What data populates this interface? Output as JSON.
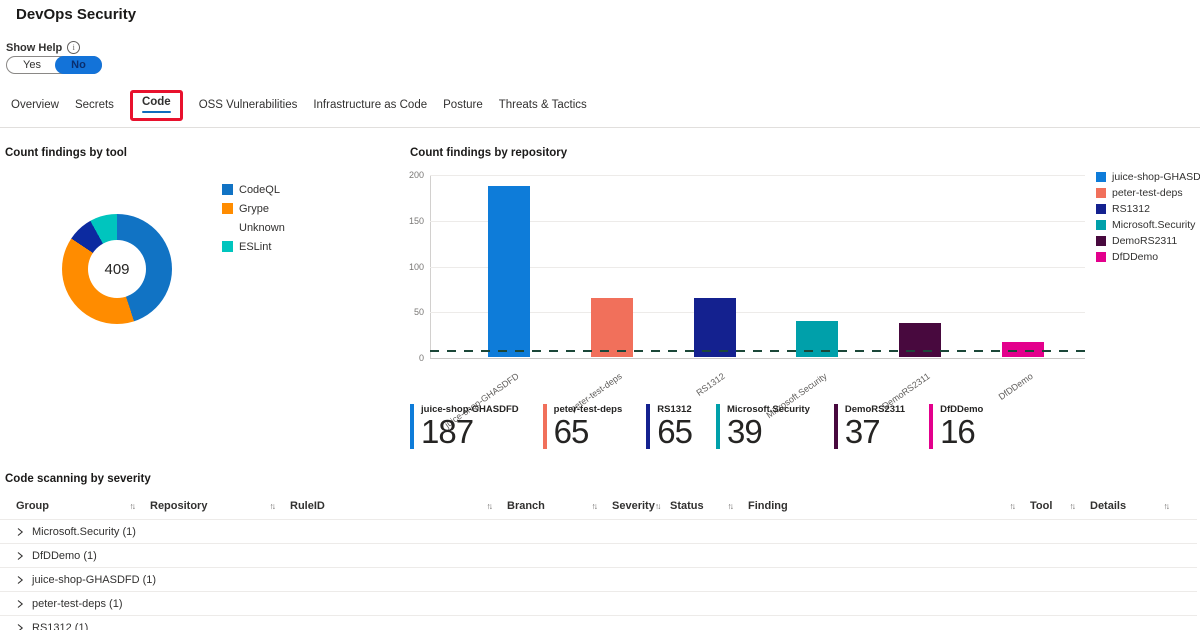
{
  "header": {
    "title": "DevOps Security"
  },
  "help": {
    "label": "Show Help",
    "yes_label": "Yes",
    "no_label": "No",
    "selected": "No"
  },
  "icons": {
    "info": "i",
    "sort": "↑↓"
  },
  "tabs": [
    {
      "label": "Overview",
      "active": false,
      "annotated": false
    },
    {
      "label": "Secrets",
      "active": false,
      "annotated": false
    },
    {
      "label": "Code",
      "active": true,
      "annotated": true
    },
    {
      "label": "OSS Vulnerabilities",
      "active": false,
      "annotated": false
    },
    {
      "label": "Infrastructure as Code",
      "active": false,
      "annotated": false
    },
    {
      "label": "Posture",
      "active": false,
      "annotated": false
    },
    {
      "label": "Threats & Tactics",
      "active": false,
      "annotated": false
    }
  ],
  "colors": {
    "accent_blue": "#0F6CBD",
    "annotation_red": "#E8112D",
    "toggle_blue": "#1373D9",
    "threshold_green": "#1B4738"
  },
  "chart_data": [
    {
      "type": "pie",
      "title": "Count findings by tool",
      "center_total": "409",
      "labels": [
        "CodeQL",
        "Grype",
        "Unknown",
        "ESLint"
      ],
      "values": [
        184,
        161,
        31,
        33
      ],
      "colors": [
        "#1173C4",
        "#FF8C00",
        "#0C2AA0",
        "#00C5BE"
      ],
      "legend_colors": [
        "#1173C4",
        "#FF8C00",
        "transparent",
        "#00C5BE"
      ],
      "legend_position": "right"
    },
    {
      "type": "bar",
      "title": "Count findings by repository",
      "categories": [
        "juice-shop-GHASDFD",
        "peter-test-deps",
        "RS1312",
        "Microsoft.Security",
        "DemoRS2311",
        "DfDDemo"
      ],
      "values": [
        187,
        65,
        65,
        39,
        37,
        16
      ],
      "colors": [
        "#0E7CD9",
        "#F1705B",
        "#14218F",
        "#00A0AA",
        "#48093E",
        "#E3008C"
      ],
      "ylim": [
        0,
        200
      ],
      "y_ticks": [
        200,
        150,
        100,
        50,
        0
      ],
      "threshold_line": {
        "value": 8,
        "style": "dashed",
        "color": "#1B4738"
      },
      "grid": true,
      "legend_position": "right"
    }
  ],
  "cards": [
    {
      "label": "juice-shop-GHASDFD",
      "value": "187",
      "color": "#0E7CD9"
    },
    {
      "label": "peter-test-deps",
      "value": "65",
      "color": "#F1705B"
    },
    {
      "label": "RS1312",
      "value": "65",
      "color": "#14218F"
    },
    {
      "label": "Microsoft.Security",
      "value": "39",
      "color": "#00A0AA"
    },
    {
      "label": "DemoRS2311",
      "value": "37",
      "color": "#48093E"
    },
    {
      "label": "DfDDemo",
      "value": "16",
      "color": "#E3008C"
    }
  ],
  "table": {
    "title": "Code scanning by severity",
    "sort_icon": "↑↓",
    "columns": [
      "Group",
      "Repository",
      "RuleID",
      "Branch",
      "Severity",
      "Status",
      "Finding",
      "Tool",
      "Details"
    ],
    "rows": [
      {
        "label": "Microsoft.Security (1)"
      },
      {
        "label": "DfDDemo (1)"
      },
      {
        "label": "juice-shop-GHASDFD (1)"
      },
      {
        "label": "peter-test-deps (1)"
      },
      {
        "label": "RS1312 (1)"
      }
    ]
  }
}
